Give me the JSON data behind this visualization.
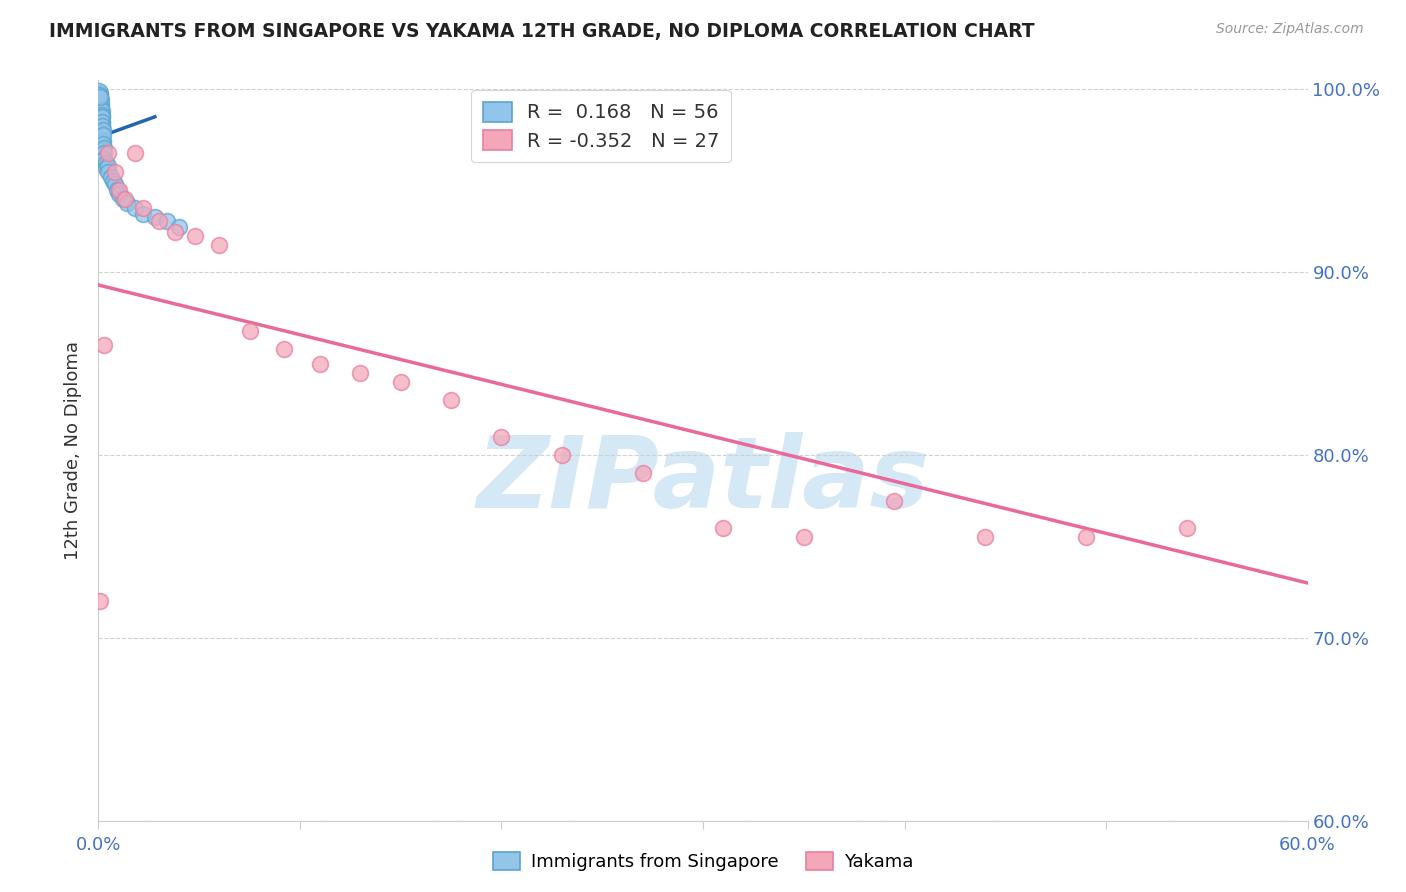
{
  "title": "IMMIGRANTS FROM SINGAPORE VS YAKAMA 12TH GRADE, NO DIPLOMA CORRELATION CHART",
  "source": "Source: ZipAtlas.com",
  "ylabel": "12th Grade, No Diploma",
  "xlim": [
    0.0,
    0.6
  ],
  "ylim": [
    0.6,
    1.005
  ],
  "xtick_vals": [
    0.0,
    0.1,
    0.2,
    0.3,
    0.4,
    0.5,
    0.6
  ],
  "xticklabels": [
    "0.0%",
    "",
    "",
    "",
    "",
    "",
    "60.0%"
  ],
  "ytick_vals": [
    0.6,
    0.7,
    0.8,
    0.9,
    1.0
  ],
  "yticklabels": [
    "60.0%",
    "70.0%",
    "80.0%",
    "90.0%",
    "100.0%"
  ],
  "legend_r_blue": " 0.168",
  "legend_n_blue": "56",
  "legend_r_pink": "-0.352",
  "legend_n_pink": "27",
  "blue_scatter_x": [
    0.0005,
    0.0005,
    0.0007,
    0.0007,
    0.0008,
    0.0008,
    0.0009,
    0.0009,
    0.001,
    0.001,
    0.001,
    0.001,
    0.0012,
    0.0012,
    0.0013,
    0.0013,
    0.0014,
    0.0015,
    0.0015,
    0.0016,
    0.0016,
    0.0017,
    0.0017,
    0.0018,
    0.0018,
    0.0019,
    0.002,
    0.002,
    0.002,
    0.0022,
    0.0022,
    0.0023,
    0.0025,
    0.0025,
    0.003,
    0.003,
    0.003,
    0.004,
    0.004,
    0.005,
    0.005,
    0.006,
    0.007,
    0.008,
    0.009,
    0.01,
    0.012,
    0.014,
    0.018,
    0.022,
    0.0003,
    0.0004,
    0.0006,
    0.028,
    0.034,
    0.04
  ],
  "blue_scatter_y": [
    0.99,
    0.985,
    0.998,
    0.992,
    0.995,
    0.988,
    0.997,
    0.991,
    0.996,
    0.993,
    0.989,
    0.984,
    0.994,
    0.988,
    0.992,
    0.986,
    0.99,
    0.985,
    0.983,
    0.988,
    0.982,
    0.986,
    0.98,
    0.985,
    0.978,
    0.982,
    0.98,
    0.976,
    0.973,
    0.978,
    0.972,
    0.975,
    0.97,
    0.967,
    0.968,
    0.965,
    0.962,
    0.96,
    0.957,
    0.958,
    0.955,
    0.952,
    0.95,
    0.948,
    0.945,
    0.943,
    0.94,
    0.938,
    0.935,
    0.932,
    0.999,
    0.997,
    0.996,
    0.93,
    0.928,
    0.925
  ],
  "pink_scatter_x": [
    0.001,
    0.003,
    0.005,
    0.008,
    0.01,
    0.013,
    0.018,
    0.022,
    0.03,
    0.038,
    0.048,
    0.06,
    0.075,
    0.092,
    0.11,
    0.13,
    0.15,
    0.175,
    0.2,
    0.23,
    0.27,
    0.31,
    0.35,
    0.395,
    0.44,
    0.49,
    0.54
  ],
  "pink_scatter_y": [
    0.72,
    0.86,
    0.965,
    0.955,
    0.945,
    0.94,
    0.965,
    0.935,
    0.928,
    0.922,
    0.92,
    0.915,
    0.868,
    0.858,
    0.85,
    0.845,
    0.84,
    0.83,
    0.81,
    0.8,
    0.79,
    0.76,
    0.755,
    0.775,
    0.755,
    0.755,
    0.76
  ],
  "blue_line_x": [
    0.0003,
    0.028
  ],
  "blue_line_y": [
    0.974,
    0.985
  ],
  "pink_line_x": [
    0.0,
    0.6
  ],
  "pink_line_y": [
    0.893,
    0.73
  ],
  "blue_color": "#92c5e8",
  "blue_edge_color": "#5ba3d0",
  "pink_color": "#f4a7b9",
  "pink_edge_color": "#e87fa0",
  "blue_line_color": "#2166ac",
  "pink_line_color": "#e8699a",
  "watermark_color": "#d4e8f5",
  "background_color": "#ffffff",
  "tick_color": "#4472c4",
  "grid_color": "#cccccc"
}
